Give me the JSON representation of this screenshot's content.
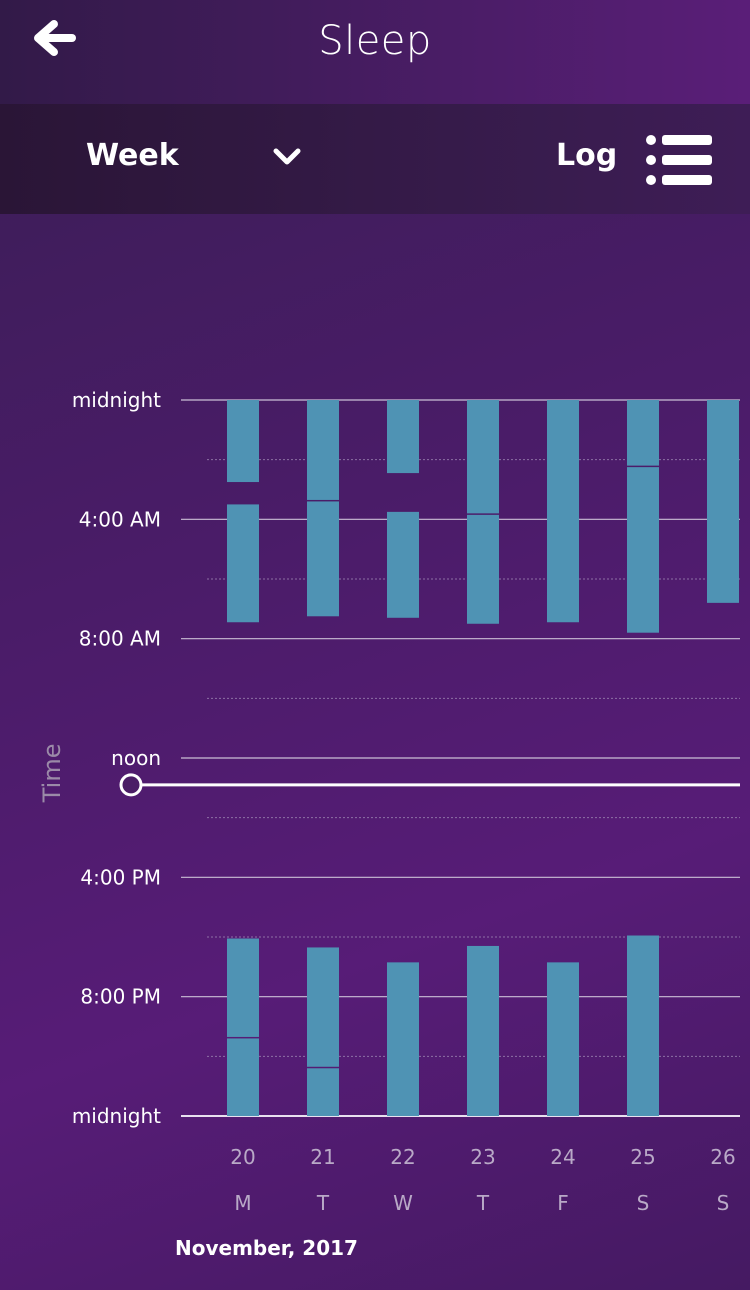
{
  "header": {
    "title": "Sleep",
    "back_icon": "arrow-left-icon"
  },
  "toolbar": {
    "range_label": "Week",
    "range_icon": "chevron-down-icon",
    "log_label": "Log",
    "list_icon": "list-icon"
  },
  "chart_data": {
    "type": "bar",
    "subtype": "range",
    "ylabel": "Time",
    "ytick_labels": [
      "midnight",
      "4:00 AM",
      "8:00 AM",
      "noon",
      "4:00 PM",
      "8:00 PM",
      "midnight"
    ],
    "ytick_hours": [
      0,
      4,
      8,
      12,
      16,
      20,
      24
    ],
    "ylim_hours": [
      0,
      24
    ],
    "grid": true,
    "slider_hour": 12.9,
    "bar_color": "#4f93b4",
    "days": [
      {
        "date": "20",
        "weekday": "M",
        "segments": [
          [
            0,
            2.75
          ],
          [
            3.5,
            7.45
          ],
          [
            18.05,
            21.35
          ],
          [
            21.4,
            24
          ]
        ]
      },
      {
        "date": "21",
        "weekday": "T",
        "segments": [
          [
            0,
            3.35
          ],
          [
            3.4,
            7.25
          ],
          [
            18.35,
            22.35
          ],
          [
            22.4,
            24
          ]
        ]
      },
      {
        "date": "22",
        "weekday": "W",
        "segments": [
          [
            0,
            2.45
          ],
          [
            3.75,
            7.3
          ],
          [
            18.85,
            24
          ]
        ]
      },
      {
        "date": "23",
        "weekday": "T",
        "segments": [
          [
            0,
            3.8
          ],
          [
            3.85,
            7.5
          ],
          [
            18.3,
            24
          ]
        ]
      },
      {
        "date": "24",
        "weekday": "F",
        "segments": [
          [
            0,
            7.45
          ],
          [
            18.85,
            24
          ]
        ]
      },
      {
        "date": "25",
        "weekday": "S",
        "segments": [
          [
            0,
            2.2
          ],
          [
            2.25,
            7.8
          ],
          [
            17.95,
            24
          ]
        ]
      },
      {
        "date": "26",
        "weekday": "S",
        "segments": [
          [
            0,
            6.8
          ]
        ]
      }
    ],
    "month_label": "November, 2017"
  }
}
